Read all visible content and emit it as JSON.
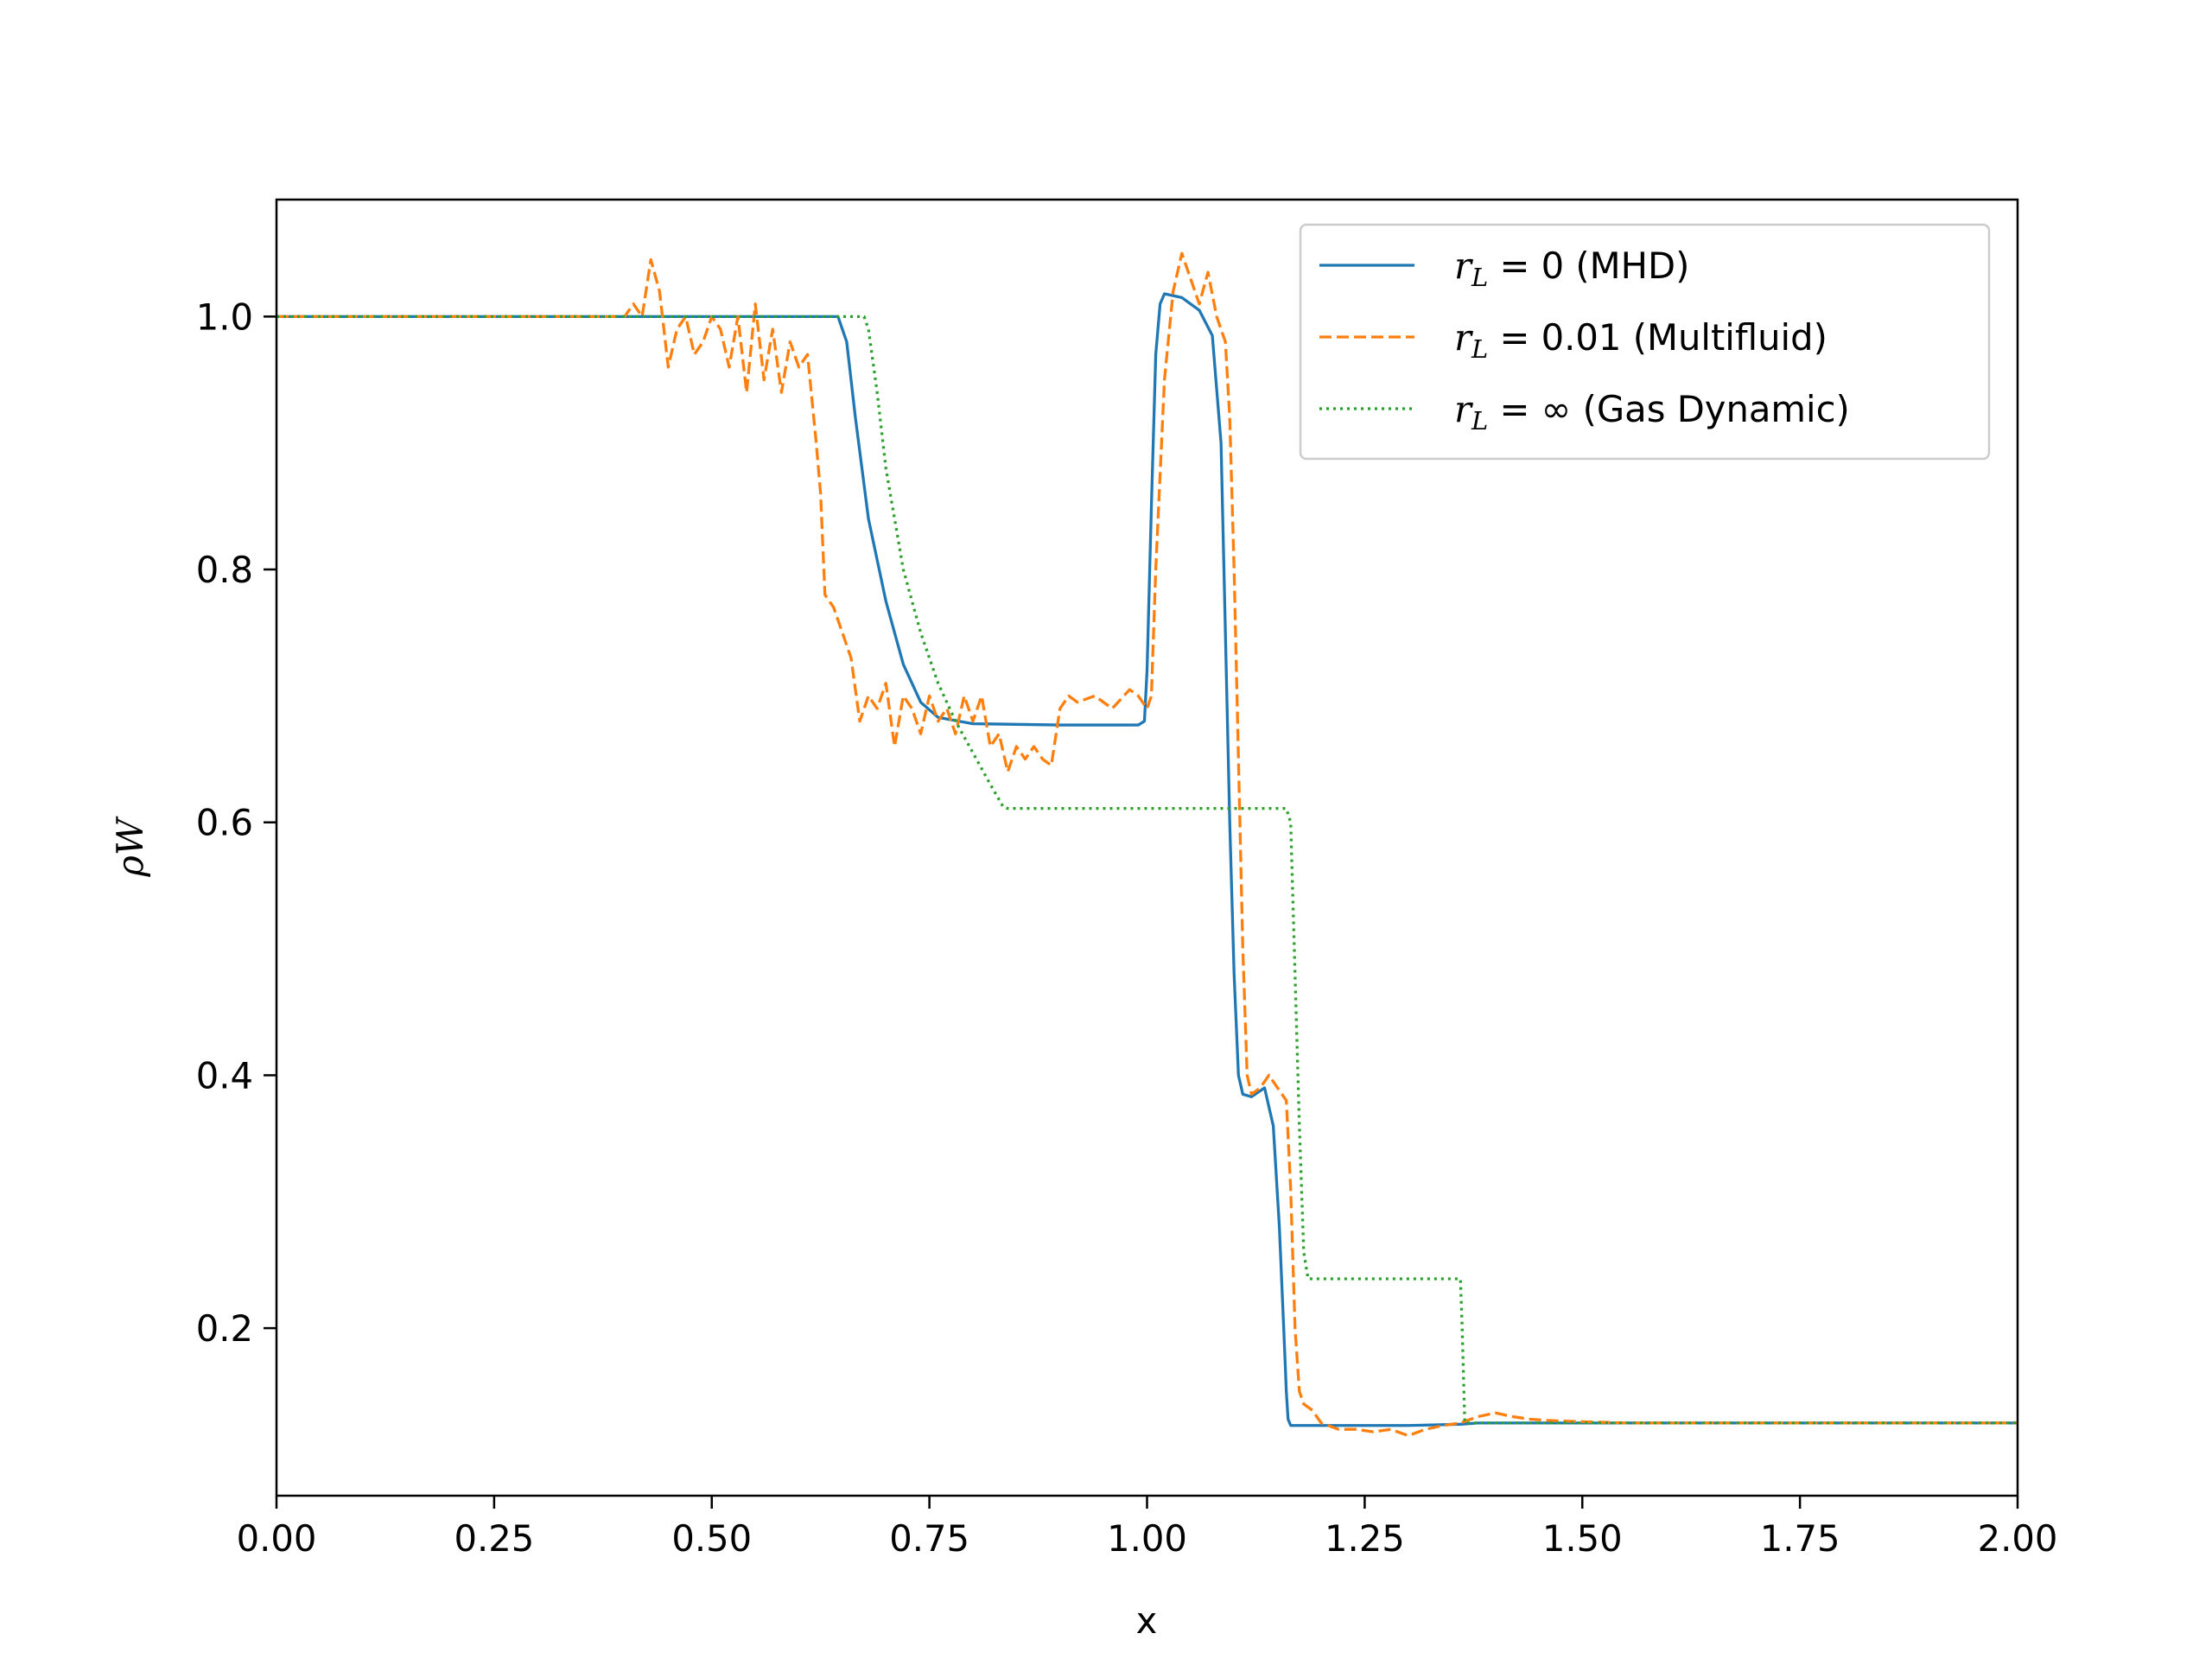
{
  "chart_data": {
    "type": "line",
    "title": "",
    "xlabel": "x",
    "ylabel": "ρW",
    "xlim": [
      0.0,
      2.0
    ],
    "ylim": [
      0.0675,
      1.0925
    ],
    "x_ticks": [
      0.0,
      0.25,
      0.5,
      0.75,
      1.0,
      1.25,
      1.5,
      1.75,
      2.0
    ],
    "x_tick_labels": [
      "0.00",
      "0.25",
      "0.50",
      "0.75",
      "1.00",
      "1.25",
      "1.50",
      "1.75",
      "2.00"
    ],
    "y_ticks": [
      0.2,
      0.4,
      0.6,
      0.8,
      1.0
    ],
    "y_tick_labels": [
      "0.2",
      "0.4",
      "0.6",
      "0.8",
      "1.0"
    ],
    "grid": false,
    "legend_position": "upper right",
    "series": [
      {
        "name": "r_L = 0 (MHD)",
        "legend_math": "r",
        "legend_sub": "L",
        "legend_rest": " = 0 (MHD)",
        "color": "#1f77b4",
        "style": "solid",
        "x": [
          0.0,
          0.5,
          0.645,
          0.655,
          0.665,
          0.68,
          0.7,
          0.72,
          0.74,
          0.76,
          0.8,
          0.9,
          0.99,
          0.997,
          1.0,
          1.005,
          1.01,
          1.015,
          1.02,
          1.04,
          1.06,
          1.075,
          1.085,
          1.09,
          1.095,
          1.1,
          1.105,
          1.11,
          1.12,
          1.135,
          1.145,
          1.152,
          1.157,
          1.16,
          1.162,
          1.165,
          1.2,
          1.3,
          1.36,
          1.38,
          1.6,
          2.0
        ],
        "y": [
          1.0,
          1.0,
          1.0,
          0.98,
          0.92,
          0.84,
          0.775,
          0.725,
          0.695,
          0.683,
          0.678,
          0.677,
          0.677,
          0.68,
          0.72,
          0.85,
          0.97,
          1.01,
          1.018,
          1.015,
          1.005,
          0.985,
          0.9,
          0.75,
          0.6,
          0.48,
          0.4,
          0.385,
          0.383,
          0.39,
          0.36,
          0.28,
          0.2,
          0.15,
          0.128,
          0.123,
          0.123,
          0.123,
          0.124,
          0.125,
          0.125,
          0.125
        ]
      },
      {
        "name": "r_L = 0.01 (Multifluid)",
        "legend_math": "r",
        "legend_sub": "L",
        "legend_rest": " = 0.01 (Multifluid)",
        "color": "#ff7f0e",
        "style": "dashed",
        "x": [
          0.0,
          0.4,
          0.41,
          0.42,
          0.43,
          0.44,
          0.45,
          0.46,
          0.47,
          0.48,
          0.49,
          0.5,
          0.51,
          0.52,
          0.53,
          0.54,
          0.55,
          0.56,
          0.57,
          0.58,
          0.59,
          0.6,
          0.61,
          0.62,
          0.625,
          0.63,
          0.64,
          0.65,
          0.66,
          0.67,
          0.68,
          0.69,
          0.7,
          0.71,
          0.72,
          0.73,
          0.74,
          0.75,
          0.76,
          0.77,
          0.78,
          0.79,
          0.8,
          0.81,
          0.82,
          0.83,
          0.84,
          0.85,
          0.86,
          0.87,
          0.88,
          0.89,
          0.9,
          0.91,
          0.92,
          0.94,
          0.96,
          0.98,
          0.99,
          1.0,
          1.005,
          1.01,
          1.02,
          1.03,
          1.04,
          1.05,
          1.06,
          1.07,
          1.08,
          1.09,
          1.095,
          1.1,
          1.105,
          1.11,
          1.115,
          1.12,
          1.13,
          1.14,
          1.15,
          1.16,
          1.165,
          1.17,
          1.175,
          1.18,
          1.19,
          1.2,
          1.22,
          1.24,
          1.26,
          1.28,
          1.3,
          1.32,
          1.34,
          1.36,
          1.38,
          1.4,
          1.42,
          1.44,
          1.46,
          1.5,
          1.55,
          1.6,
          1.7,
          2.0
        ],
        "y": [
          1.0,
          1.0,
          1.01,
          1.0,
          1.045,
          1.02,
          0.96,
          0.99,
          1.0,
          0.97,
          0.98,
          1.0,
          0.99,
          0.96,
          1.0,
          0.94,
          1.01,
          0.95,
          0.99,
          0.94,
          0.98,
          0.96,
          0.97,
          0.9,
          0.86,
          0.78,
          0.77,
          0.75,
          0.73,
          0.68,
          0.7,
          0.69,
          0.71,
          0.66,
          0.7,
          0.69,
          0.67,
          0.7,
          0.68,
          0.69,
          0.67,
          0.7,
          0.68,
          0.7,
          0.66,
          0.67,
          0.64,
          0.66,
          0.65,
          0.66,
          0.65,
          0.645,
          0.69,
          0.7,
          0.695,
          0.7,
          0.69,
          0.705,
          0.7,
          0.69,
          0.7,
          0.8,
          0.95,
          1.02,
          1.05,
          1.03,
          1.01,
          1.035,
          1.0,
          0.98,
          0.92,
          0.8,
          0.65,
          0.5,
          0.4,
          0.385,
          0.39,
          0.4,
          0.39,
          0.38,
          0.31,
          0.2,
          0.15,
          0.14,
          0.135,
          0.125,
          0.12,
          0.12,
          0.118,
          0.12,
          0.115,
          0.12,
          0.123,
          0.125,
          0.13,
          0.133,
          0.13,
          0.128,
          0.127,
          0.126,
          0.125,
          0.125,
          0.125,
          0.125
        ]
      },
      {
        "name": "r_L = ∞ (Gas Dynamic)",
        "legend_math": "r",
        "legend_sub": "L",
        "legend_rest": " = ∞ (Gas Dynamic)",
        "color": "#2ca02c",
        "style": "dotted",
        "x": [
          0.0,
          0.67,
          0.675,
          0.68,
          0.69,
          0.7,
          0.72,
          0.74,
          0.76,
          0.78,
          0.8,
          0.82,
          0.835,
          0.84,
          1.16,
          1.165,
          1.17,
          1.175,
          1.18,
          1.185,
          1.36,
          1.362,
          1.365,
          2.0
        ],
        "y": [
          1.0,
          1.0,
          1.0,
          0.99,
          0.94,
          0.88,
          0.8,
          0.75,
          0.71,
          0.68,
          0.655,
          0.63,
          0.612,
          0.611,
          0.611,
          0.6,
          0.48,
          0.36,
          0.26,
          0.239,
          0.239,
          0.2,
          0.125,
          0.125
        ]
      }
    ]
  }
}
